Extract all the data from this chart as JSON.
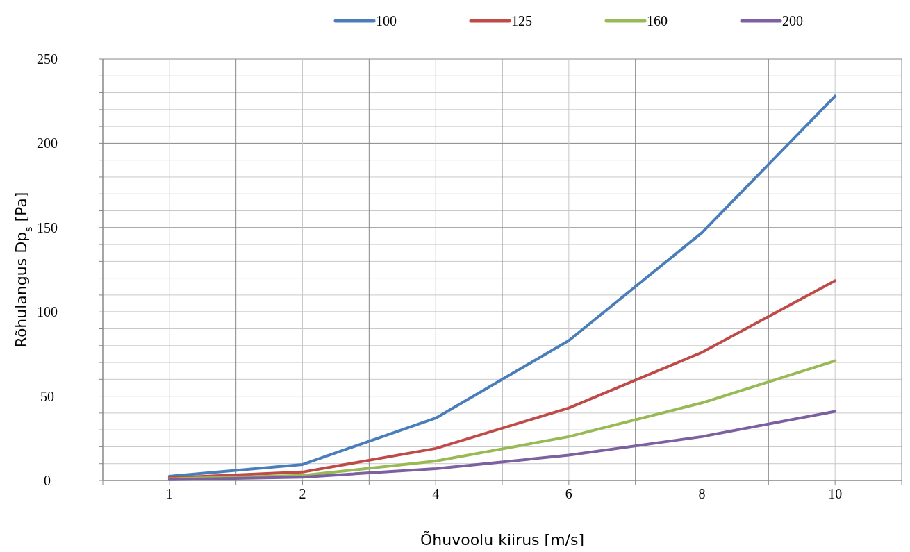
{
  "chart_data": {
    "type": "line",
    "xlabel": "Õhuvoolu kiirus [m/s]",
    "ylabel": "Rõhulangus Dp$_{s}$ [Pa]",
    "categories": [
      "1",
      "2",
      "4",
      "6",
      "8",
      "10"
    ],
    "ylim": [
      0,
      250
    ],
    "yticks": [
      0,
      {
        "value": 10,
        "label": null
      },
      {
        "value": 20,
        "label": null
      },
      {
        "value": 30,
        "label": null
      },
      {
        "value": 40,
        "label": null
      },
      50,
      {
        "value": 60,
        "label": null
      },
      {
        "value": 70,
        "label": null
      },
      {
        "value": 80,
        "label": null
      },
      {
        "value": 90,
        "label": null
      },
      100,
      {
        "value": 110,
        "label": null
      },
      {
        "value": 120,
        "label": null
      },
      {
        "value": 130,
        "label": null
      },
      {
        "value": 140,
        "label": null
      },
      150,
      {
        "value": 160,
        "label": null
      },
      {
        "value": 170,
        "label": null
      },
      {
        "value": 180,
        "label": null
      },
      {
        "value": 190,
        "label": null
      },
      200,
      {
        "value": 210,
        "label": null
      },
      {
        "value": 220,
        "label": null
      },
      {
        "value": 230,
        "label": null
      },
      {
        "value": 240,
        "label": null
      },
      250
    ],
    "grid": true,
    "legend": "top",
    "marker": "none",
    "line_style": "solid",
    "series": [
      {
        "name": "100",
        "color": "#4a7ebb",
        "values": [
          2.5,
          9.5,
          37,
          83,
          147,
          228
        ]
      },
      {
        "name": "125",
        "color": "#be4b48",
        "values": [
          1.6,
          5,
          19,
          43,
          76,
          118.5
        ]
      },
      {
        "name": "160",
        "color": "#98b954",
        "values": [
          1,
          3,
          11.5,
          26,
          46,
          71
        ]
      },
      {
        "name": "200",
        "color": "#7d60a0",
        "values": [
          0.5,
          2,
          7,
          15,
          26,
          41
        ]
      }
    ]
  }
}
